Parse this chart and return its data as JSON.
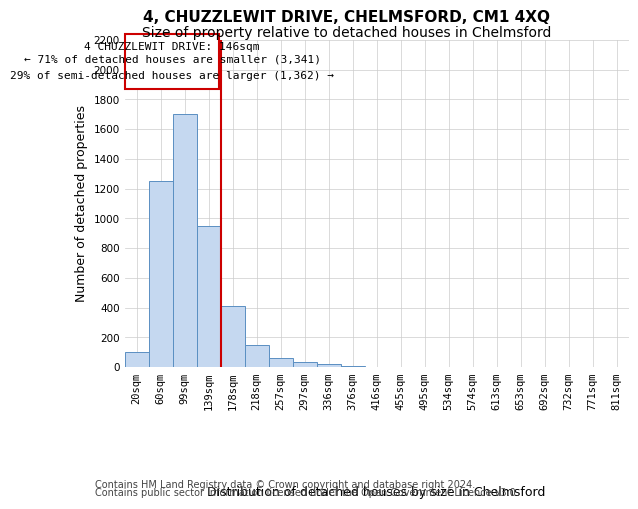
{
  "title": "4, CHUZZLEWIT DRIVE, CHELMSFORD, CM1 4XQ",
  "subtitle": "Size of property relative to detached houses in Chelmsford",
  "xlabel": "Distribution of detached houses by size in Chelmsford",
  "ylabel": "Number of detached properties",
  "categories": [
    "20sqm",
    "60sqm",
    "99sqm",
    "139sqm",
    "178sqm",
    "218sqm",
    "257sqm",
    "297sqm",
    "336sqm",
    "376sqm",
    "416sqm",
    "455sqm",
    "495sqm",
    "534sqm",
    "574sqm",
    "613sqm",
    "653sqm",
    "692sqm",
    "732sqm",
    "771sqm",
    "811sqm"
  ],
  "values": [
    100,
    1250,
    1700,
    950,
    410,
    150,
    65,
    35,
    20,
    8,
    3,
    2,
    1,
    1,
    0,
    0,
    0,
    0,
    0,
    0,
    0
  ],
  "bar_color": "#c5d8f0",
  "bar_edge_color": "#5a8fc2",
  "grid_color": "#cccccc",
  "annotation_box_color": "#cc0000",
  "annotation_line_color": "#cc0000",
  "annotation_text_line1": "4 CHUZZLEWIT DRIVE: 146sqm",
  "annotation_text_line2": "← 71% of detached houses are smaller (3,341)",
  "annotation_text_line3": "29% of semi-detached houses are larger (1,362) →",
  "ylim": [
    0,
    2200
  ],
  "yticks": [
    0,
    200,
    400,
    600,
    800,
    1000,
    1200,
    1400,
    1600,
    1800,
    2000,
    2200
  ],
  "footer_line1": "Contains HM Land Registry data © Crown copyright and database right 2024.",
  "footer_line2": "Contains public sector information licensed under the Open Government Licence v3.0.",
  "title_fontsize": 11,
  "subtitle_fontsize": 10,
  "axis_label_fontsize": 9,
  "tick_fontsize": 7.5,
  "annotation_fontsize": 8,
  "footer_fontsize": 7
}
